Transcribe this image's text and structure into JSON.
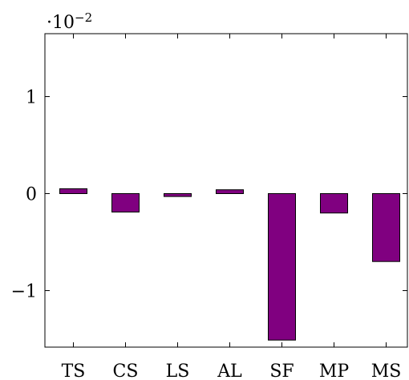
{
  "chart_data": {
    "type": "bar",
    "title": "",
    "xlabel": "",
    "ylabel": "",
    "scale_base": "·10",
    "scale_exponent": "−2",
    "categories": [
      "TS",
      "CS",
      "LS",
      "AL",
      "SF",
      "MP",
      "MS"
    ],
    "values": [
      0.0005,
      -0.0019,
      -0.0003,
      0.0004,
      -0.0151,
      -0.002,
      -0.007
    ],
    "ylim": [
      -0.016,
      0.016
    ],
    "yticks": [
      -0.01,
      0,
      0.01
    ],
    "ytick_labels": [
      "−1",
      "0",
      "1"
    ],
    "grid": false,
    "legend": "none",
    "colors": {
      "bar_fill": "#800080",
      "bar_stroke": "#000000",
      "axis": "#000000"
    }
  }
}
